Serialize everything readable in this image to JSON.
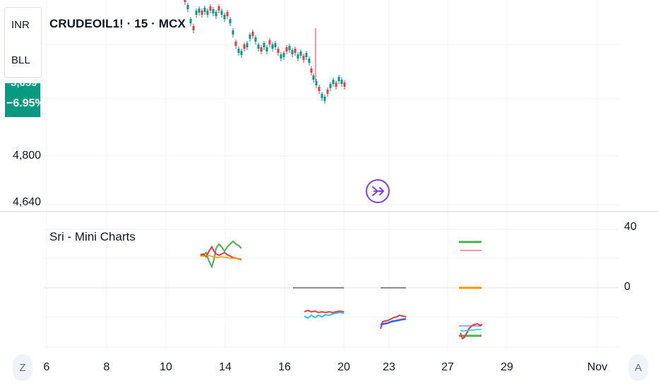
{
  "header": {
    "symbol_title": "CRUDEOIL1! · 15 · MCX"
  },
  "side_panel": {
    "currency": "INR",
    "unit": "BLL"
  },
  "price_badge": {
    "price_partial": "5,059",
    "change": "−6.95%",
    "color": "#089981"
  },
  "price_axis": {
    "labels": [
      "4,800",
      "4,640"
    ]
  },
  "indicator": {
    "title": "Sri - Mini Charts",
    "axis_labels": [
      "40",
      "0"
    ]
  },
  "time_axis": {
    "labels": [
      "6",
      "8",
      "10",
      "14",
      "16",
      "20",
      "23",
      "27",
      "29",
      "Nov"
    ]
  },
  "corner_buttons": {
    "left": "Z",
    "right": "A"
  },
  "icons": {
    "nav": "scroll-to-realtime-icon"
  },
  "colors": {
    "up": "#089981",
    "down": "#f23645",
    "accent": "#7e3ff2",
    "green": "#4caf50",
    "orange": "#ff9800",
    "red_line": "#f15a5a",
    "cyan": "#26c6da",
    "blue": "#2962ff"
  }
}
